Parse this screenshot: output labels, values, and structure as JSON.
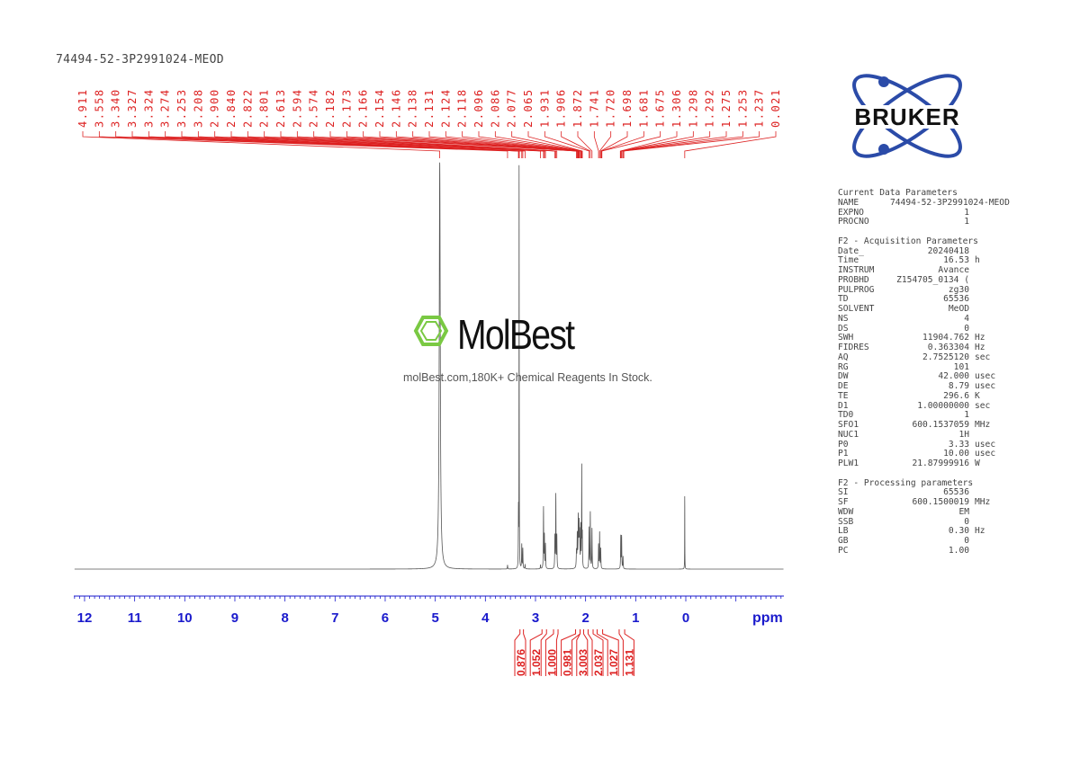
{
  "title": "74494-52-3P2991024-MEOD",
  "logo": {
    "text": "BRUKER",
    "color": "#2b4ba8"
  },
  "watermark": {
    "name": "MolBest",
    "subtitle": "molBest.com,180K+ Chemical Reagents In Stock.",
    "color": "#7ac943"
  },
  "parameters": [
    {
      "header": "Current Data Parameters",
      "rows": [
        {
          "label": "NAME",
          "value": "74494-52-3P2991024-MEOD",
          "unit": ""
        },
        {
          "label": "EXPNO",
          "value": "1",
          "unit": ""
        },
        {
          "label": "PROCNO",
          "value": "1",
          "unit": ""
        }
      ]
    },
    {
      "header": "F2 - Acquisition Parameters",
      "rows": [
        {
          "label": "Date_",
          "value": "20240418",
          "unit": ""
        },
        {
          "label": "Time",
          "value": "16.53",
          "unit": "h"
        },
        {
          "label": "INSTRUM",
          "value": "Avance",
          "unit": ""
        },
        {
          "label": "PROBHD",
          "value": "Z154705_0134 (",
          "unit": ""
        },
        {
          "label": "PULPROG",
          "value": "zg30",
          "unit": ""
        },
        {
          "label": "TD",
          "value": "65536",
          "unit": ""
        },
        {
          "label": "SOLVENT",
          "value": "MeOD",
          "unit": ""
        },
        {
          "label": "NS",
          "value": "4",
          "unit": ""
        },
        {
          "label": "DS",
          "value": "0",
          "unit": ""
        },
        {
          "label": "SWH",
          "value": "11904.762",
          "unit": "Hz"
        },
        {
          "label": "FIDRES",
          "value": "0.363304",
          "unit": "Hz"
        },
        {
          "label": "AQ",
          "value": "2.7525120",
          "unit": "sec"
        },
        {
          "label": "RG",
          "value": "101",
          "unit": ""
        },
        {
          "label": "DW",
          "value": "42.000",
          "unit": "usec"
        },
        {
          "label": "DE",
          "value": "8.79",
          "unit": "usec"
        },
        {
          "label": "TE",
          "value": "296.6",
          "unit": "K"
        },
        {
          "label": "D1",
          "value": "1.00000000",
          "unit": "sec"
        },
        {
          "label": "TD0",
          "value": "1",
          "unit": ""
        },
        {
          "label": "SFO1",
          "value": "600.1537059",
          "unit": "MHz"
        },
        {
          "label": "NUC1",
          "value": "1H",
          "unit": ""
        },
        {
          "label": "P0",
          "value": "3.33",
          "unit": "usec"
        },
        {
          "label": "P1",
          "value": "10.00",
          "unit": "usec"
        },
        {
          "label": "PLW1",
          "value": "21.87999916",
          "unit": "W"
        }
      ]
    },
    {
      "header": "F2 - Processing parameters",
      "rows": [
        {
          "label": "SI",
          "value": "65536",
          "unit": ""
        },
        {
          "label": "SF",
          "value": "600.1500019",
          "unit": "MHz"
        },
        {
          "label": "WDW",
          "value": "EM",
          "unit": ""
        },
        {
          "label": "SSB",
          "value": "0",
          "unit": ""
        },
        {
          "label": "LB",
          "value": "0.30",
          "unit": "Hz"
        },
        {
          "label": "GB",
          "value": "0",
          "unit": ""
        },
        {
          "label": "PC",
          "value": "1.00",
          "unit": ""
        }
      ]
    }
  ],
  "chart_data": {
    "type": "line",
    "xlabel": "ppm",
    "xlim": [
      12.2,
      -1.95
    ],
    "x_reversed": true,
    "xticks": [
      "12",
      "11",
      "10",
      "9",
      "8",
      "7",
      "6",
      "5",
      "4",
      "3",
      "2",
      "1",
      "0"
    ],
    "axis_color": "#1a1acc",
    "peak_label_color": "#dd2222",
    "peak_labels": [
      "4.911",
      "3.558",
      "3.340",
      "3.327",
      "3.324",
      "3.274",
      "3.253",
      "3.208",
      "2.900",
      "2.840",
      "2.822",
      "2.801",
      "2.613",
      "2.594",
      "2.574",
      "2.182",
      "2.173",
      "2.166",
      "2.154",
      "2.146",
      "2.138",
      "2.131",
      "2.124",
      "2.118",
      "2.096",
      "2.086",
      "2.077",
      "2.065",
      "1.931",
      "1.906",
      "1.872",
      "1.741",
      "1.720",
      "1.698",
      "1.681",
      "1.675",
      "1.306",
      "1.298",
      "1.292",
      "1.275",
      "1.253",
      "1.237",
      "0.021"
    ],
    "peaks": [
      {
        "ppm": 4.911,
        "intensity": 1.0,
        "width": 0.012
      },
      {
        "ppm": 3.558,
        "intensity": 0.01,
        "width": 0.004
      },
      {
        "ppm": 3.34,
        "intensity": 0.14,
        "width": 0.003
      },
      {
        "ppm": 3.327,
        "intensity": 1.0,
        "width": 0.002
      },
      {
        "ppm": 3.324,
        "intensity": 0.1,
        "width": 0.003
      },
      {
        "ppm": 3.274,
        "intensity": 0.06,
        "width": 0.004
      },
      {
        "ppm": 3.253,
        "intensity": 0.05,
        "width": 0.004
      },
      {
        "ppm": 3.208,
        "intensity": 0.01,
        "width": 0.004
      },
      {
        "ppm": 2.9,
        "intensity": 0.01,
        "width": 0.004
      },
      {
        "ppm": 2.84,
        "intensity": 0.15,
        "width": 0.004
      },
      {
        "ppm": 2.822,
        "intensity": 0.08,
        "width": 0.004
      },
      {
        "ppm": 2.801,
        "intensity": 0.06,
        "width": 0.004
      },
      {
        "ppm": 2.613,
        "intensity": 0.08,
        "width": 0.004
      },
      {
        "ppm": 2.594,
        "intensity": 0.18,
        "width": 0.004
      },
      {
        "ppm": 2.574,
        "intensity": 0.08,
        "width": 0.004
      },
      {
        "ppm": 2.182,
        "intensity": 0.04,
        "width": 0.005
      },
      {
        "ppm": 2.166,
        "intensity": 0.08,
        "width": 0.005
      },
      {
        "ppm": 2.146,
        "intensity": 0.12,
        "width": 0.005
      },
      {
        "ppm": 2.131,
        "intensity": 0.1,
        "width": 0.005
      },
      {
        "ppm": 2.118,
        "intensity": 0.08,
        "width": 0.005
      },
      {
        "ppm": 2.096,
        "intensity": 0.1,
        "width": 0.004
      },
      {
        "ppm": 2.077,
        "intensity": 0.25,
        "width": 0.003
      },
      {
        "ppm": 2.065,
        "intensity": 0.08,
        "width": 0.004
      },
      {
        "ppm": 1.931,
        "intensity": 0.1,
        "width": 0.004
      },
      {
        "ppm": 1.906,
        "intensity": 0.14,
        "width": 0.004
      },
      {
        "ppm": 1.872,
        "intensity": 0.1,
        "width": 0.004
      },
      {
        "ppm": 1.741,
        "intensity": 0.06,
        "width": 0.004
      },
      {
        "ppm": 1.72,
        "intensity": 0.09,
        "width": 0.004
      },
      {
        "ppm": 1.698,
        "intensity": 0.05,
        "width": 0.004
      },
      {
        "ppm": 1.298,
        "intensity": 0.08,
        "width": 0.004
      },
      {
        "ppm": 1.281,
        "intensity": 0.08,
        "width": 0.004
      },
      {
        "ppm": 1.253,
        "intensity": 0.03,
        "width": 0.004
      },
      {
        "ppm": 0.021,
        "intensity": 0.19,
        "width": 0.002
      }
    ],
    "integrals": [
      {
        "ppm_from": 3.31,
        "ppm_to": 3.24,
        "value": "0.876"
      },
      {
        "ppm_from": 2.87,
        "ppm_to": 2.78,
        "value": "1.052"
      },
      {
        "ppm_from": 2.64,
        "ppm_to": 2.55,
        "value": "1.000"
      },
      {
        "ppm_from": 2.2,
        "ppm_to": 2.11,
        "value": "0.981"
      },
      {
        "ppm_from": 2.11,
        "ppm_to": 2.04,
        "value": "3.003"
      },
      {
        "ppm_from": 1.95,
        "ppm_to": 1.85,
        "value": "2.037"
      },
      {
        "ppm_from": 1.77,
        "ppm_to": 1.66,
        "value": "1.027"
      },
      {
        "ppm_from": 1.33,
        "ppm_to": 1.22,
        "value": "1.131"
      }
    ]
  }
}
